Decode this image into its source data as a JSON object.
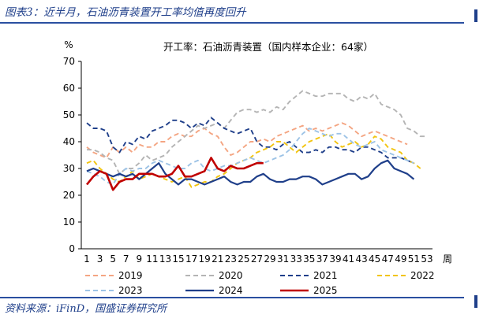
{
  "figure_title": "图表3：近半月，石油沥青装置开工率均值再度回升",
  "source_text": "资料来源：iFinD，国盛证券研究所",
  "chart_data": {
    "type": "line",
    "title": "开工率：石油沥青装置（国内样本企业：64家）",
    "ylabel": "%",
    "xlabel": "周",
    "ylim": [
      0,
      70
    ],
    "xlim": [
      1,
      53
    ],
    "yticks": [
      0,
      10,
      20,
      30,
      40,
      50,
      60,
      70
    ],
    "xticks": [
      1,
      3,
      5,
      7,
      9,
      11,
      13,
      15,
      17,
      19,
      21,
      23,
      25,
      27,
      29,
      31,
      33,
      35,
      37,
      39,
      41,
      43,
      45,
      47,
      49,
      51,
      53
    ],
    "grid": false,
    "legend_position": "bottom",
    "series": [
      {
        "name": "2019",
        "color": "#f4a582",
        "dash": "dashed",
        "values": [
          38,
          36,
          35,
          34,
          38,
          36,
          38,
          36,
          39,
          38,
          38,
          40,
          40,
          42,
          43,
          42,
          42,
          44,
          45,
          43,
          42,
          38,
          35,
          36,
          38,
          40,
          40,
          41,
          40,
          42,
          43,
          44,
          45,
          46,
          44,
          45,
          44,
          45,
          46,
          47,
          46,
          44,
          42,
          43,
          44,
          43,
          42,
          41,
          40,
          39
        ]
      },
      {
        "name": "2020",
        "color": "#b4b4b4",
        "dash": "dashed",
        "values": [
          37,
          37,
          36,
          34,
          33,
          28,
          30,
          30,
          32,
          35,
          33,
          34,
          35,
          38,
          40,
          42,
          44,
          46,
          45,
          46,
          47,
          45,
          48,
          51,
          52,
          52,
          51,
          52,
          51,
          53,
          52,
          55,
          57,
          59,
          58,
          57,
          57,
          58,
          58,
          58,
          56,
          55,
          57,
          56,
          58,
          54,
          53,
          52,
          50,
          45,
          44,
          42,
          42
        ]
      },
      {
        "name": "2021",
        "color": "#1f3f8a",
        "dash": "dashed",
        "values": [
          47,
          45,
          45,
          44,
          38,
          36,
          40,
          39,
          42,
          41,
          44,
          45,
          46,
          48,
          48,
          47,
          45,
          47,
          46,
          49,
          47,
          45,
          44,
          43,
          44,
          45,
          40,
          38,
          38,
          37,
          39,
          40,
          38,
          36,
          36,
          37,
          36,
          38,
          38,
          37,
          37,
          36,
          38,
          38,
          37,
          36,
          34,
          34,
          34,
          33,
          32
        ]
      },
      {
        "name": "2022",
        "color": "#f2c40f",
        "dash": "dashed",
        "values": [
          32,
          33,
          30,
          28,
          26,
          25,
          27,
          29,
          26,
          27,
          28,
          27,
          26,
          25,
          26,
          27,
          23,
          24,
          25,
          25,
          27,
          28,
          30,
          32,
          33,
          34,
          36,
          37,
          38,
          40,
          40,
          38,
          36,
          38,
          40,
          41,
          42,
          43,
          40,
          38,
          39,
          40,
          38,
          39,
          42,
          41,
          38,
          37,
          36,
          33,
          32,
          30
        ]
      },
      {
        "name": "2023",
        "color": "#9dc3e6",
        "dash": "dashed",
        "values": [
          29,
          28,
          27,
          25,
          24,
          28,
          30,
          29,
          30,
          30,
          32,
          33,
          32,
          31,
          30,
          30,
          32,
          33,
          30,
          29,
          30,
          31,
          31,
          32,
          33,
          34,
          33,
          32,
          33,
          34,
          35,
          37,
          40,
          43,
          45,
          44,
          43,
          42,
          43,
          43,
          41,
          39,
          38,
          39,
          40,
          37,
          36,
          35,
          34,
          33,
          32
        ]
      },
      {
        "name": "2024",
        "color": "#1f3f8a",
        "dash": "solid",
        "values": [
          29,
          30,
          29,
          28,
          27,
          28,
          27,
          28,
          26,
          28,
          30,
          32,
          28,
          26,
          24,
          26,
          26,
          25,
          24,
          25,
          26,
          27,
          25,
          24,
          25,
          25,
          27,
          28,
          26,
          25,
          25,
          26,
          26,
          27,
          27,
          26,
          24,
          25,
          26,
          27,
          28,
          28,
          26,
          27,
          30,
          32,
          33,
          30,
          29,
          28,
          26
        ]
      },
      {
        "name": "2025",
        "color": "#c00000",
        "dash": "solid",
        "values": [
          24,
          27,
          29,
          28,
          22,
          25,
          26,
          26,
          28,
          28,
          28,
          27,
          27,
          28,
          31,
          27,
          27,
          28,
          29,
          34,
          30,
          29,
          31,
          30,
          30,
          31,
          32,
          32
        ]
      }
    ]
  }
}
